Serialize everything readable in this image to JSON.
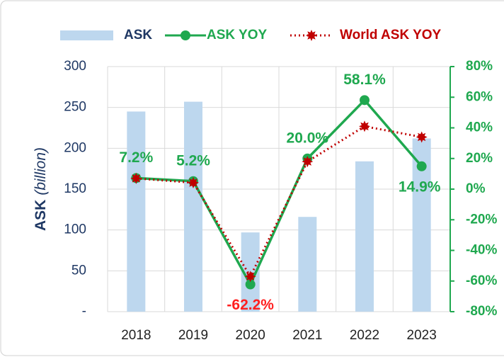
{
  "chart_data": {
    "type": "bar_line",
    "y_label": {
      "text": "ASK",
      "unit": "(billion)"
    },
    "categories": [
      "2018",
      "2019",
      "2020",
      "2021",
      "2022",
      "2023"
    ],
    "series": [
      {
        "name": "ASK",
        "type": "bar",
        "color": "#bdd7ee",
        "axis": "y",
        "values": [
          245,
          257,
          97,
          116,
          184,
          212
        ]
      },
      {
        "name": "ASK YOY",
        "type": "line",
        "color": "#1fa84f",
        "axis": "y2",
        "values": [
          7.2,
          5.2,
          -62.2,
          20.0,
          58.1,
          14.9
        ],
        "value_labels": [
          "7.2%",
          "5.2%",
          "-62.2%",
          "20.0%",
          "58.1%",
          "14.9%"
        ]
      },
      {
        "name": "World ASK YOY",
        "type": "dotted_line",
        "color": "#c00000",
        "axis": "y2",
        "values": [
          7,
          4.2,
          -57,
          18,
          41,
          34
        ]
      }
    ],
    "ylim": [
      0,
      300
    ],
    "yticks": [
      {
        "value": 0,
        "label": "-"
      },
      50,
      100,
      150,
      200,
      250,
      300
    ],
    "y2lim": [
      -80,
      80
    ],
    "y2ticks": [
      {
        "value": -80,
        "label": "-80%"
      },
      {
        "value": -60,
        "label": "-60%"
      },
      {
        "value": -40,
        "label": "-40%"
      },
      {
        "value": -20,
        "label": "-20%"
      },
      {
        "value": 0,
        "label": "0%"
      },
      {
        "value": 20,
        "label": "20%"
      },
      {
        "value": 40,
        "label": "40%"
      },
      {
        "value": 60,
        "label": "60%"
      },
      {
        "value": 80,
        "label": "80%"
      }
    ],
    "grid": true,
    "legend": "top"
  }
}
